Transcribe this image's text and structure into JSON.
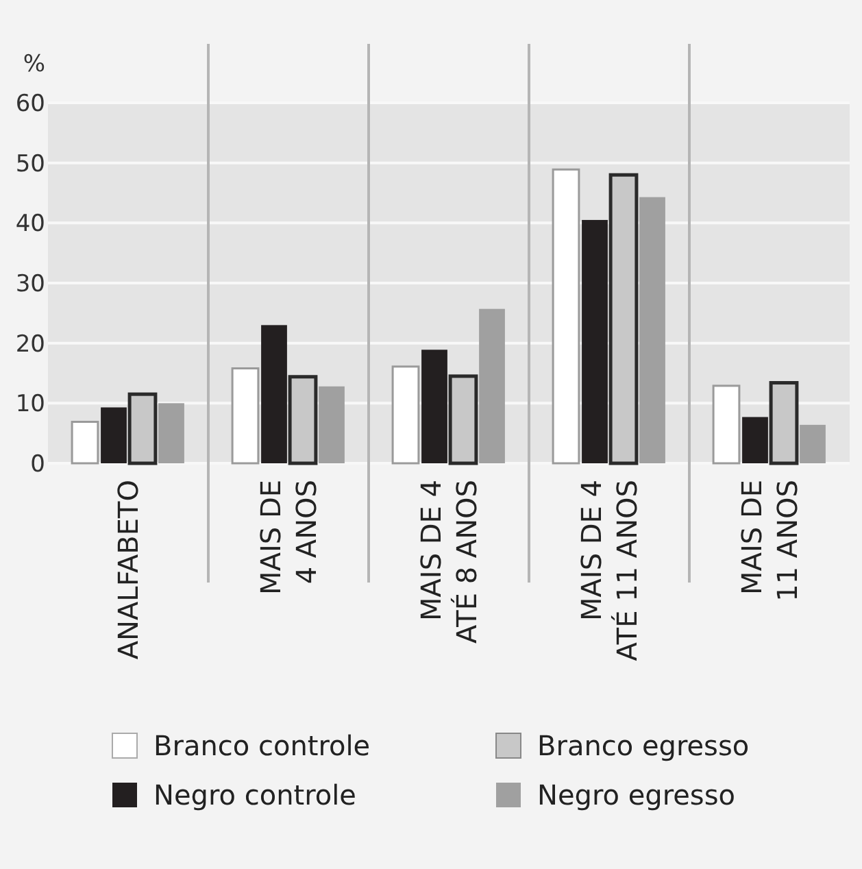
{
  "chart_data": {
    "type": "bar",
    "ylabel": "%",
    "categories": [
      "ANALFABETO",
      "MAIS DE 4 ANOS",
      "MAIS DE 4 ATÉ 8 ANOS",
      "MAIS DE 4 ATÉ 11 ANOS",
      "MAIS DE 11 ANOS"
    ],
    "series": [
      {
        "name": "Branco controle",
        "color": "#ffffff",
        "values": [
          6.9,
          15.8,
          16.1,
          48.9,
          12.9
        ]
      },
      {
        "name": "Negro controle",
        "color": "#231f20",
        "values": [
          9.3,
          23,
          18.9,
          40.5,
          7.7
        ]
      },
      {
        "name": "Branco egresso",
        "color": "#c8c8c8",
        "values": [
          11.5,
          14.4,
          14.5,
          48,
          13.4
        ]
      },
      {
        "name": "Negro egresso",
        "color": "#a0a0a0",
        "values": [
          10,
          12.8,
          25.7,
          44.3,
          6.4
        ]
      }
    ],
    "ylim": [
      0,
      60
    ],
    "yticks": [
      0,
      10,
      20,
      30,
      40,
      50,
      60
    ],
    "grid": "y",
    "legend": "bottom"
  }
}
